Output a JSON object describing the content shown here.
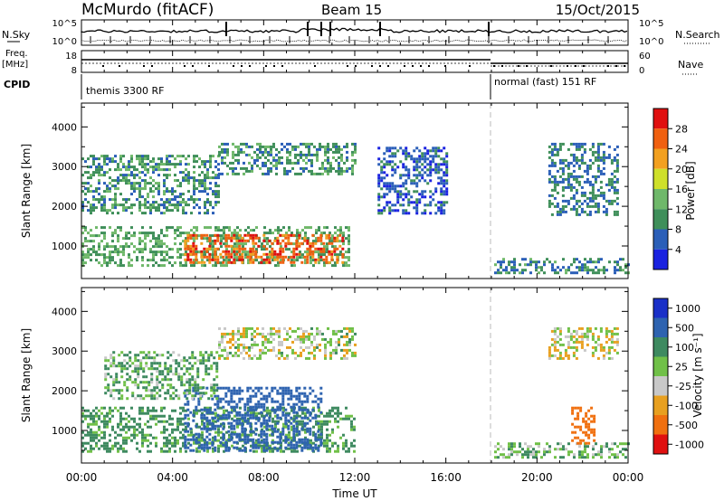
{
  "header": {
    "station": "McMurdo (fitACF)",
    "beam": "Beam 15",
    "date": "15/Oct/2015"
  },
  "top_panels": {
    "nsky_label": "N.Sky",
    "nsearch_label": "N.Search",
    "nsky_ticks": [
      "10^5",
      "10^0"
    ],
    "nsearch_ticks": [
      "10^5",
      "10^0"
    ],
    "freq_label_1": "Freq.",
    "freq_label_2": "[MHz]",
    "freq_ticks": [
      "18",
      "8"
    ],
    "nave_label": "Nave",
    "nave_ticks": [
      "60",
      "0"
    ],
    "cpid_label": "CPID",
    "cpid_mode_1": "themis 3300 RF",
    "cpid_mode_2": "normal (fast) 151 RF"
  },
  "x_axis": {
    "label": "Time UT",
    "ticks": [
      "00:00",
      "04:00",
      "08:00",
      "12:00",
      "16:00",
      "20:00",
      "00:00"
    ]
  },
  "power_panel": {
    "ylabel": "Slant Range [km]",
    "yticks": [
      "1000",
      "2000",
      "3000",
      "4000"
    ],
    "colorbar_label": "Power [dB]",
    "colorbar_ticks": [
      "4",
      "8",
      "12",
      "16",
      "20",
      "24",
      "28"
    ],
    "colors": [
      "#1a22e0",
      "#2b5fb8",
      "#3f8f5a",
      "#6fb86a",
      "#cfe02a",
      "#f2a020",
      "#f06010",
      "#e01010"
    ]
  },
  "velocity_panel": {
    "ylabel": "Slant Range [km]",
    "yticks": [
      "1000",
      "2000",
      "3000",
      "4000"
    ],
    "colorbar_label": "Velocity [m s⁻¹]",
    "colorbar_ticks": [
      "1000",
      "500",
      "100",
      "25",
      "-25",
      "-100",
      "-500",
      "-1000"
    ],
    "colors": [
      "#1a30c8",
      "#2e63b0",
      "#3e8a60",
      "#70c048",
      "#c8c8c8",
      "#e8a020",
      "#f07010",
      "#e01010"
    ]
  },
  "chart_data": [
    {
      "type": "heatmap",
      "quantity": "Power [dB]",
      "x_range": [
        "00:00",
        "24:00"
      ],
      "y_range_km": [
        180,
        4600
      ],
      "clim": [
        0,
        32
      ],
      "regions": [
        {
          "t0": 0.0,
          "t1": 11.7,
          "r0": 500,
          "r1": 1500,
          "value": 12
        },
        {
          "t0": 4.5,
          "t1": 11.5,
          "r0": 600,
          "r1": 1300,
          "value": 26
        },
        {
          "t0": 0.0,
          "t1": 6.0,
          "r0": 1800,
          "r1": 3300,
          "value": 10
        },
        {
          "t0": 6.0,
          "t1": 12.0,
          "r0": 2800,
          "r1": 3600,
          "value": 10
        },
        {
          "t0": 13.0,
          "t1": 16.0,
          "r0": 1800,
          "r1": 3500,
          "value": 6
        },
        {
          "t0": 18.0,
          "t1": 24.0,
          "r0": 300,
          "r1": 700,
          "value": 9
        },
        {
          "t0": 20.5,
          "t1": 23.5,
          "r0": 1800,
          "r1": 3600,
          "value": 8
        }
      ]
    },
    {
      "type": "heatmap",
      "quantity": "Velocity [m s^-1]",
      "x_range": [
        "00:00",
        "24:00"
      ],
      "y_range_km": [
        180,
        4600
      ],
      "clim": [
        -1000,
        1000
      ],
      "regions": [
        {
          "t0": 0.0,
          "t1": 12.0,
          "r0": 500,
          "r1": 1600,
          "value": 150
        },
        {
          "t0": 4.5,
          "t1": 10.5,
          "r0": 500,
          "r1": 2100,
          "value": 700
        },
        {
          "t0": 1.0,
          "t1": 6.0,
          "r0": 1800,
          "r1": 3000,
          "value": 100
        },
        {
          "t0": 6.0,
          "t1": 12.0,
          "r0": 2800,
          "r1": 3600,
          "value": 25
        },
        {
          "t0": 18.0,
          "t1": 24.0,
          "r0": 300,
          "r1": 700,
          "value": 80
        },
        {
          "t0": 20.5,
          "t1": 23.5,
          "r0": 2800,
          "r1": 3600,
          "value": 0
        },
        {
          "t0": 21.5,
          "t1": 22.5,
          "r0": 700,
          "r1": 1600,
          "value": -300
        }
      ]
    }
  ]
}
